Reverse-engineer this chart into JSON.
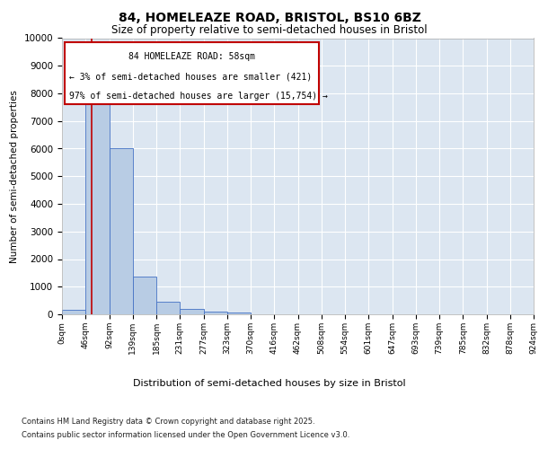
{
  "title_line1": "84, HOMELEAZE ROAD, BRISTOL, BS10 6BZ",
  "title_line2": "Size of property relative to semi-detached houses in Bristol",
  "xlabel": "Distribution of semi-detached houses by size in Bristol",
  "ylabel": "Number of semi-detached properties",
  "annotation_line1": "84 HOMELEAZE ROAD: 58sqm",
  "annotation_line2": "← 3% of semi-detached houses are smaller (421)",
  "annotation_line3": "97% of semi-detached houses are larger (15,754) →",
  "footer_line1": "Contains HM Land Registry data © Crown copyright and database right 2025.",
  "footer_line2": "Contains public sector information licensed under the Open Government Licence v3.0.",
  "bar_values": [
    150,
    7900,
    6000,
    1350,
    450,
    200,
    100,
    60,
    0,
    0,
    0,
    0,
    0,
    0,
    0,
    0,
    0,
    0,
    0,
    0
  ],
  "bin_labels": [
    "0sqm",
    "46sqm",
    "92sqm",
    "139sqm",
    "185sqm",
    "231sqm",
    "277sqm",
    "323sqm",
    "370sqm",
    "416sqm",
    "462sqm",
    "508sqm",
    "554sqm",
    "601sqm",
    "647sqm",
    "693sqm",
    "739sqm",
    "785sqm",
    "832sqm",
    "878sqm",
    "924sqm"
  ],
  "bar_color": "#b8cce4",
  "bar_edge_color": "#4472c4",
  "vline_color": "#c00000",
  "annotation_box_color": "#c00000",
  "background_color": "#dce6f1",
  "ylim": [
    0,
    10000
  ],
  "yticks": [
    0,
    1000,
    2000,
    3000,
    4000,
    5000,
    6000,
    7000,
    8000,
    9000,
    10000
  ],
  "vline_x": 1.26
}
